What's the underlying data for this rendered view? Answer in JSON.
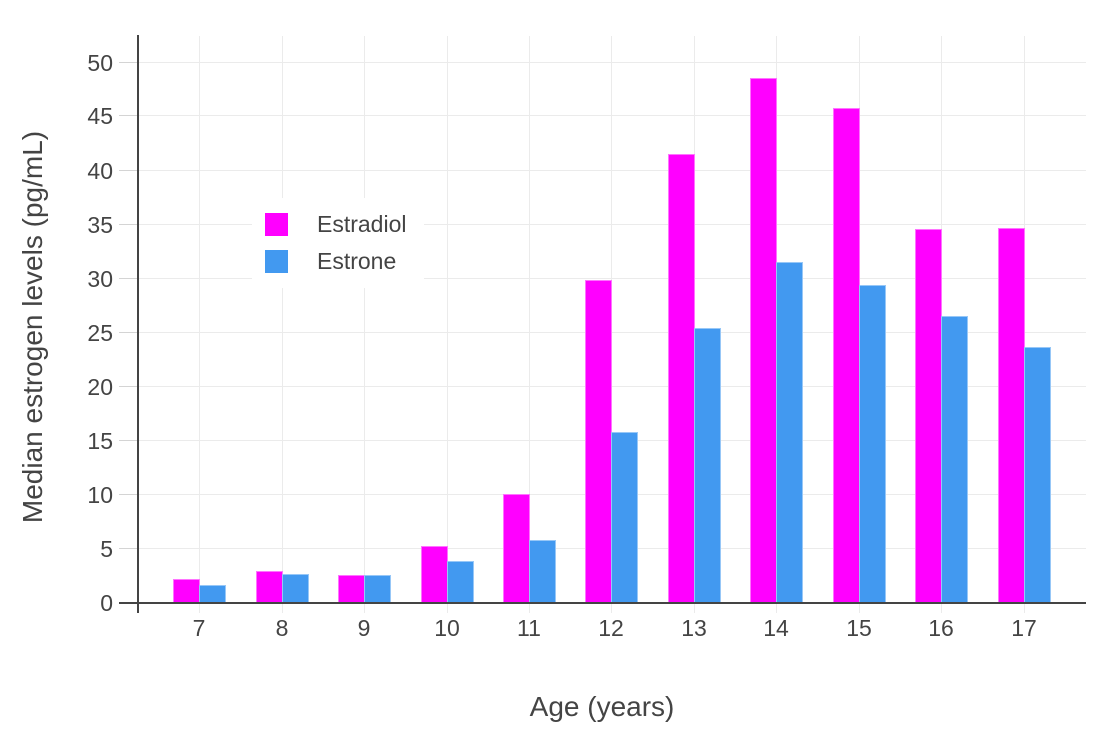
{
  "chart_data": {
    "type": "bar",
    "title": "",
    "xlabel": "Age (years)",
    "ylabel": "Median estrogen levels (pg/mL)",
    "categories": [
      "7",
      "8",
      "9",
      "10",
      "11",
      "12",
      "13",
      "14",
      "15",
      "16",
      "17"
    ],
    "series": [
      {
        "name": "Estradiol",
        "color": "#ff00ff",
        "values": [
          2.2,
          3.0,
          2.6,
          5.3,
          10.1,
          29.9,
          41.6,
          48.6,
          45.8,
          34.6,
          34.7
        ]
      },
      {
        "name": "Estrone",
        "color": "#4299f0",
        "values": [
          1.7,
          2.7,
          2.6,
          3.9,
          5.8,
          15.8,
          25.5,
          31.6,
          29.4,
          26.6,
          23.7
        ]
      }
    ],
    "ylim": [
      0,
      52.5
    ],
    "yticks": [
      0,
      5,
      10,
      15,
      20,
      25,
      30,
      35,
      40,
      45,
      50
    ],
    "grid": true,
    "legend_position": "inside-top-left",
    "style": {
      "background": "#ffffff",
      "grid_color": "#ebebeb",
      "tick_mark_color": "#d4d4d4",
      "axis_line_color": "#444444",
      "text_color": "#444444"
    }
  }
}
